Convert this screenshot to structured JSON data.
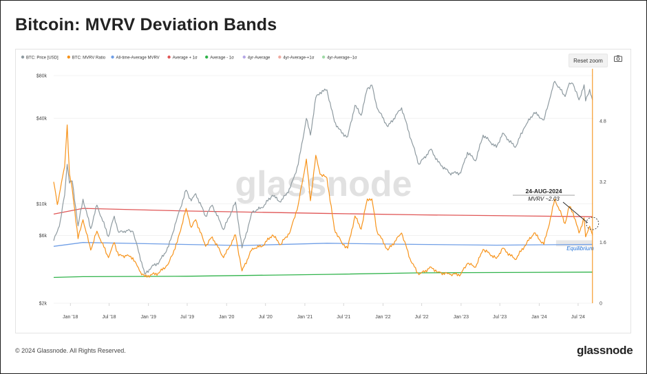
{
  "title": "Bitcoin: MVRV Deviation Bands",
  "reset_zoom": "Reset zoom",
  "camera_icon": "camera-icon",
  "footer": {
    "copyright": "© 2024 Glassnode. All Rights Reserved.",
    "brand": "glassnode"
  },
  "watermark": "glassnode",
  "chart_data": {
    "type": "line",
    "title": "Bitcoin: MVRV Deviation Bands",
    "legend": [
      {
        "name": "BTC: Price [USD]",
        "color": "#8e9aa0"
      },
      {
        "name": "BTC: MVRV Ratio",
        "color": "#f7931a"
      },
      {
        "name": "All-time-Average MVRV",
        "color": "#6f9ee6"
      },
      {
        "name": "Average + 1σ",
        "color": "#e05555"
      },
      {
        "name": "Average - 1σ",
        "color": "#2fb34a"
      },
      {
        "name": "4yr-Average",
        "color": "#b5a7e6"
      },
      {
        "name": "4yr-Average-+1σ",
        "color": "#f0aaa0"
      },
      {
        "name": "4yr-Average--1σ",
        "color": "#9fd9a6"
      }
    ],
    "x_ticks": [
      "Jan '18",
      "Jul '18",
      "Jan '19",
      "Jul '19",
      "Jan '20",
      "Jul '20",
      "Jan '21",
      "Jul '21",
      "Jan '22",
      "Jul '22",
      "Jan '23",
      "Jul '23",
      "Jan '24",
      "Jul '24"
    ],
    "x_range": [
      "2017-10-15",
      "2024-09-10"
    ],
    "y_left": {
      "scale": "log",
      "range": [
        2000,
        80000
      ],
      "ticks": [
        "$80k",
        "$40k",
        "$10k",
        "$6k",
        "$2k"
      ],
      "tick_values": [
        80000,
        40000,
        10000,
        6000,
        2000
      ]
    },
    "y_right": {
      "scale": "linear",
      "range": [
        0,
        6
      ],
      "ticks": [
        "4.8",
        "3.2",
        "1.6",
        "0"
      ],
      "tick_values": [
        4.8,
        3.2,
        1.6,
        0
      ]
    },
    "series": [
      {
        "name": "BTC: Price [USD]",
        "color": "#8e9aa0",
        "axis": "left",
        "points": [
          [
            "2017-10-15",
            5500
          ],
          [
            "2017-11-01",
            6400
          ],
          [
            "2017-11-15",
            7600
          ],
          [
            "2017-12-05",
            11500
          ],
          [
            "2017-12-17",
            19000
          ],
          [
            "2017-12-28",
            14000
          ],
          [
            "2018-01-10",
            14500
          ],
          [
            "2018-02-06",
            7000
          ],
          [
            "2018-03-01",
            10800
          ],
          [
            "2018-04-06",
            6700
          ],
          [
            "2018-05-05",
            9800
          ],
          [
            "2018-06-28",
            5900
          ],
          [
            "2018-07-25",
            8200
          ],
          [
            "2018-08-15",
            6300
          ],
          [
            "2018-09-20",
            6500
          ],
          [
            "2018-10-20",
            6400
          ],
          [
            "2018-11-20",
            4400
          ],
          [
            "2018-12-15",
            3200
          ],
          [
            "2019-01-15",
            3600
          ],
          [
            "2019-02-20",
            3900
          ],
          [
            "2019-04-05",
            5000
          ],
          [
            "2019-05-15",
            8000
          ],
          [
            "2019-06-26",
            12500
          ],
          [
            "2019-07-20",
            10500
          ],
          [
            "2019-08-10",
            11800
          ],
          [
            "2019-09-25",
            8200
          ],
          [
            "2019-10-26",
            9800
          ],
          [
            "2019-12-18",
            6600
          ],
          [
            "2020-02-12",
            10300
          ],
          [
            "2020-03-13",
            4900
          ],
          [
            "2020-05-01",
            8800
          ],
          [
            "2020-06-15",
            9400
          ],
          [
            "2020-08-02",
            11500
          ],
          [
            "2020-09-10",
            10300
          ],
          [
            "2020-10-25",
            13000
          ],
          [
            "2020-12-01",
            19000
          ],
          [
            "2021-01-08",
            40000
          ],
          [
            "2021-01-27",
            30500
          ],
          [
            "2021-02-21",
            56000
          ],
          [
            "2021-03-13",
            61000
          ],
          [
            "2021-04-14",
            63500
          ],
          [
            "2021-05-19",
            38000
          ],
          [
            "2021-06-22",
            31500
          ],
          [
            "2021-07-20",
            29800
          ],
          [
            "2021-08-23",
            49500
          ],
          [
            "2021-09-21",
            42000
          ],
          [
            "2021-10-20",
            65000
          ],
          [
            "2021-11-10",
            68500
          ],
          [
            "2021-12-04",
            47500
          ],
          [
            "2022-01-24",
            35000
          ],
          [
            "2022-03-29",
            47500
          ],
          [
            "2022-05-12",
            28500
          ],
          [
            "2022-06-18",
            19000
          ],
          [
            "2022-08-14",
            24300
          ],
          [
            "2022-09-15",
            19700
          ],
          [
            "2022-11-09",
            16500
          ],
          [
            "2022-12-30",
            16500
          ],
          [
            "2023-01-31",
            23100
          ],
          [
            "2023-03-10",
            20100
          ],
          [
            "2023-04-14",
            30500
          ],
          [
            "2023-06-15",
            25000
          ],
          [
            "2023-07-14",
            31500
          ],
          [
            "2023-09-11",
            25000
          ],
          [
            "2023-10-24",
            34500
          ],
          [
            "2023-12-08",
            44000
          ],
          [
            "2024-01-23",
            39000
          ],
          [
            "2024-02-28",
            62000
          ],
          [
            "2024-03-14",
            73000
          ],
          [
            "2024-05-01",
            57000
          ],
          [
            "2024-05-21",
            71000
          ],
          [
            "2024-06-07",
            70000
          ],
          [
            "2024-07-05",
            54000
          ],
          [
            "2024-07-29",
            69000
          ],
          [
            "2024-08-05",
            53000
          ],
          [
            "2024-08-24",
            64000
          ],
          [
            "2024-09-06",
            54000
          ]
        ]
      },
      {
        "name": "BTC: MVRV Ratio",
        "color": "#f7931a",
        "axis": "right",
        "points": [
          [
            "2017-10-15",
            3.2
          ],
          [
            "2017-11-01",
            2.6
          ],
          [
            "2017-11-15",
            3.0
          ],
          [
            "2017-12-05",
            3.6
          ],
          [
            "2017-12-17",
            4.7
          ],
          [
            "2017-12-28",
            3.4
          ],
          [
            "2018-01-10",
            3.0
          ],
          [
            "2018-02-06",
            1.7
          ],
          [
            "2018-03-01",
            2.2
          ],
          [
            "2018-04-06",
            1.4
          ],
          [
            "2018-05-05",
            1.9
          ],
          [
            "2018-06-28",
            1.2
          ],
          [
            "2018-07-25",
            1.6
          ],
          [
            "2018-08-15",
            1.25
          ],
          [
            "2018-09-20",
            1.25
          ],
          [
            "2018-10-20",
            1.2
          ],
          [
            "2018-11-20",
            0.85
          ],
          [
            "2018-12-15",
            0.7
          ],
          [
            "2019-01-15",
            0.75
          ],
          [
            "2019-02-20",
            0.8
          ],
          [
            "2019-04-05",
            1.05
          ],
          [
            "2019-05-15",
            1.6
          ],
          [
            "2019-06-26",
            2.5
          ],
          [
            "2019-07-20",
            2.0
          ],
          [
            "2019-08-10",
            2.2
          ],
          [
            "2019-09-25",
            1.5
          ],
          [
            "2019-10-26",
            1.75
          ],
          [
            "2019-12-18",
            1.2
          ],
          [
            "2020-02-12",
            1.8
          ],
          [
            "2020-03-13",
            0.85
          ],
          [
            "2020-05-01",
            1.45
          ],
          [
            "2020-06-15",
            1.5
          ],
          [
            "2020-08-02",
            1.8
          ],
          [
            "2020-09-10",
            1.55
          ],
          [
            "2020-10-25",
            1.9
          ],
          [
            "2020-12-01",
            2.6
          ],
          [
            "2021-01-08",
            3.8
          ],
          [
            "2021-01-27",
            2.7
          ],
          [
            "2021-02-21",
            3.9
          ],
          [
            "2021-03-13",
            3.4
          ],
          [
            "2021-04-14",
            3.3
          ],
          [
            "2021-05-19",
            1.95
          ],
          [
            "2021-06-22",
            1.6
          ],
          [
            "2021-07-20",
            1.45
          ],
          [
            "2021-08-23",
            2.3
          ],
          [
            "2021-09-21",
            1.95
          ],
          [
            "2021-10-20",
            2.75
          ],
          [
            "2021-11-10",
            2.75
          ],
          [
            "2021-12-04",
            1.9
          ],
          [
            "2022-01-24",
            1.4
          ],
          [
            "2022-03-29",
            1.85
          ],
          [
            "2022-05-12",
            1.1
          ],
          [
            "2022-06-18",
            0.75
          ],
          [
            "2022-08-14",
            0.95
          ],
          [
            "2022-09-15",
            0.82
          ],
          [
            "2022-11-09",
            0.76
          ],
          [
            "2022-12-30",
            0.76
          ],
          [
            "2023-01-31",
            1.05
          ],
          [
            "2023-03-10",
            0.95
          ],
          [
            "2023-04-14",
            1.42
          ],
          [
            "2023-06-15",
            1.18
          ],
          [
            "2023-07-14",
            1.45
          ],
          [
            "2023-09-11",
            1.15
          ],
          [
            "2023-10-24",
            1.5
          ],
          [
            "2023-12-08",
            1.85
          ],
          [
            "2024-01-23",
            1.55
          ],
          [
            "2024-02-28",
            2.35
          ],
          [
            "2024-03-14",
            2.75
          ],
          [
            "2024-05-01",
            2.1
          ],
          [
            "2024-05-21",
            2.55
          ],
          [
            "2024-06-07",
            2.4
          ],
          [
            "2024-07-05",
            1.85
          ],
          [
            "2024-07-29",
            2.25
          ],
          [
            "2024-08-05",
            1.75
          ],
          [
            "2024-08-24",
            2.03
          ],
          [
            "2024-09-06",
            1.8
          ]
        ]
      },
      {
        "name": "All-time-Average MVRV",
        "color": "#6f9ee6",
        "axis": "right",
        "points": [
          [
            "2017-10-15",
            1.5
          ],
          [
            "2018-03-01",
            1.6
          ],
          [
            "2018-12-15",
            1.57
          ],
          [
            "2020-03-13",
            1.52
          ],
          [
            "2021-04-14",
            1.58
          ],
          [
            "2022-06-18",
            1.55
          ],
          [
            "2023-06-15",
            1.53
          ],
          [
            "2024-09-06",
            1.55
          ]
        ]
      },
      {
        "name": "Average + 1σ",
        "color": "#e05555",
        "axis": "right",
        "points": [
          [
            "2017-10-15",
            2.35
          ],
          [
            "2018-03-01",
            2.5
          ],
          [
            "2019-06-26",
            2.43
          ],
          [
            "2021-03-13",
            2.37
          ],
          [
            "2022-06-18",
            2.33
          ],
          [
            "2024-09-06",
            2.28
          ]
        ]
      },
      {
        "name": "Average - 1σ",
        "color": "#2fb34a",
        "axis": "right",
        "points": [
          [
            "2017-10-15",
            0.68
          ],
          [
            "2018-03-01",
            0.7
          ],
          [
            "2019-06-26",
            0.71
          ],
          [
            "2021-04-14",
            0.76
          ],
          [
            "2022-06-18",
            0.8
          ],
          [
            "2024-09-06",
            0.82
          ]
        ]
      }
    ],
    "annotations": [
      {
        "text_date": "24-AUG-2024",
        "text_value": "MVRV ~2.03",
        "x": "2024-08-24",
        "y": 2.03,
        "axis": "right"
      },
      {
        "text": "Equilibrium",
        "x": "2024-06-01",
        "y": 1.45,
        "axis": "right"
      }
    ],
    "cursor_date": "2024-09-06"
  }
}
